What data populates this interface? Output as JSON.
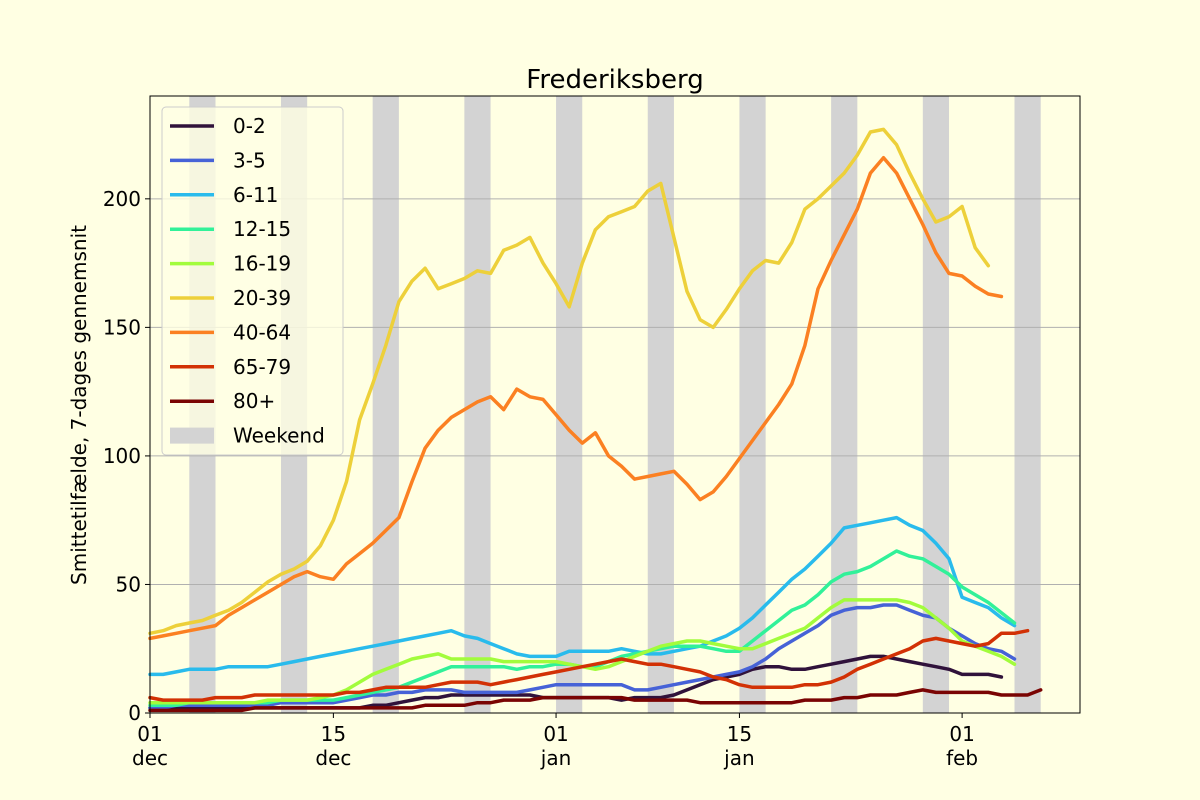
{
  "chart_data": {
    "type": "line",
    "title": "Frederiksberg",
    "xlabel": "",
    "ylabel": "Smittetilfælde, 7-dages gennemsnit",
    "xlim": [
      "2021-12-01",
      "2022-02-10"
    ],
    "ylim": [
      0,
      240
    ],
    "grid": "horizontal",
    "legend_position": "top-left",
    "y_ticks": [
      0,
      50,
      100,
      150,
      200
    ],
    "x_ticks": [
      {
        "date": "2021-12-01",
        "day": "01",
        "month": "dec"
      },
      {
        "date": "2021-12-15",
        "day": "15",
        "month": "dec"
      },
      {
        "date": "2022-01-01",
        "day": "01",
        "month": "jan"
      },
      {
        "date": "2022-01-15",
        "day": "15",
        "month": "jan"
      },
      {
        "date": "2022-02-01",
        "day": "01",
        "month": "feb"
      }
    ],
    "weekend_label": "Weekend",
    "weekend_color": "#d3d3d3",
    "weekends": [
      [
        "2021-12-04",
        "2021-12-06"
      ],
      [
        "2021-12-11",
        "2021-12-13"
      ],
      [
        "2021-12-18",
        "2021-12-20"
      ],
      [
        "2021-12-25",
        "2021-12-27"
      ],
      [
        "2022-01-01",
        "2022-01-03"
      ],
      [
        "2022-01-08",
        "2022-01-10"
      ],
      [
        "2022-01-15",
        "2022-01-17"
      ],
      [
        "2022-01-22",
        "2022-01-24"
      ],
      [
        "2022-01-29",
        "2022-01-31"
      ],
      [
        "2022-02-05",
        "2022-02-07"
      ]
    ],
    "series": [
      {
        "name": "0-2",
        "color": "#30123b",
        "start": "2021-12-01",
        "values": [
          2,
          2,
          2,
          2,
          2,
          2,
          2,
          2,
          2,
          2,
          2,
          2,
          2,
          2,
          2,
          2,
          2,
          3,
          3,
          4,
          5,
          6,
          6,
          7,
          7,
          7,
          7,
          7,
          7,
          7,
          6,
          6,
          6,
          6,
          6,
          6,
          5,
          6,
          6,
          6,
          7,
          9,
          11,
          13,
          14,
          15,
          17,
          18,
          18,
          17,
          17,
          18,
          19,
          20,
          21,
          22,
          22,
          21,
          20,
          19,
          18,
          17,
          15,
          15,
          15,
          14
        ]
      },
      {
        "name": "3-5",
        "color": "#4662d7",
        "start": "2021-12-01",
        "values": [
          2,
          2,
          3,
          3,
          3,
          3,
          3,
          3,
          3,
          3,
          4,
          4,
          4,
          4,
          4,
          5,
          6,
          7,
          7,
          8,
          8,
          9,
          9,
          9,
          8,
          8,
          8,
          8,
          8,
          9,
          10,
          11,
          11,
          11,
          11,
          11,
          11,
          9,
          9,
          10,
          11,
          12,
          13,
          14,
          15,
          16,
          18,
          21,
          25,
          28,
          31,
          34,
          38,
          40,
          41,
          41,
          42,
          42,
          40,
          38,
          37,
          33,
          30,
          27,
          25,
          24,
          21
        ]
      },
      {
        "name": "6-11",
        "color": "#29bbec",
        "start": "2021-12-01",
        "values": [
          15,
          15,
          16,
          17,
          17,
          17,
          18,
          18,
          18,
          18,
          19,
          20,
          21,
          22,
          23,
          24,
          25,
          26,
          27,
          28,
          29,
          30,
          31,
          32,
          30,
          29,
          27,
          25,
          23,
          22,
          22,
          22,
          24,
          24,
          24,
          24,
          25,
          24,
          23,
          23,
          24,
          25,
          26,
          28,
          30,
          33,
          37,
          42,
          47,
          52,
          56,
          61,
          66,
          72,
          73,
          74,
          75,
          76,
          73,
          71,
          66,
          60,
          45,
          43,
          41,
          37,
          34
        ]
      },
      {
        "name": "12-15",
        "color": "#31f199",
        "start": "2021-12-01",
        "values": [
          3,
          3,
          3,
          4,
          4,
          4,
          4,
          4,
          4,
          4,
          5,
          5,
          5,
          5,
          5,
          6,
          7,
          8,
          9,
          10,
          12,
          14,
          16,
          18,
          18,
          18,
          18,
          18,
          17,
          18,
          18,
          19,
          19,
          18,
          18,
          20,
          22,
          23,
          24,
          25,
          26,
          26,
          26,
          25,
          24,
          24,
          28,
          32,
          36,
          40,
          42,
          46,
          51,
          54,
          55,
          57,
          60,
          63,
          61,
          60,
          57,
          54,
          49,
          46,
          43,
          39,
          35
        ]
      },
      {
        "name": "16-19",
        "color": "#a2fc3c",
        "start": "2021-12-01",
        "values": [
          4,
          4,
          4,
          4,
          4,
          4,
          4,
          4,
          4,
          5,
          5,
          5,
          5,
          6,
          7,
          9,
          12,
          15,
          17,
          19,
          21,
          22,
          23,
          21,
          21,
          21,
          21,
          20,
          20,
          20,
          20,
          20,
          19,
          18,
          17,
          18,
          20,
          22,
          24,
          26,
          27,
          28,
          28,
          27,
          26,
          25,
          25,
          27,
          29,
          31,
          33,
          37,
          41,
          44,
          44,
          44,
          44,
          44,
          43,
          41,
          37,
          33,
          28,
          26,
          24,
          22,
          19
        ]
      },
      {
        "name": "20-39",
        "color": "#edd03a",
        "start": "2021-12-01",
        "values": [
          31,
          32,
          34,
          35,
          36,
          38,
          40,
          43,
          47,
          51,
          54,
          56,
          59,
          65,
          75,
          90,
          114,
          128,
          143,
          160,
          168,
          173,
          165,
          167,
          169,
          172,
          171,
          180,
          182,
          185,
          175,
          167,
          158,
          175,
          188,
          193,
          195,
          197,
          203,
          206,
          185,
          164,
          153,
          150,
          157,
          165,
          172,
          176,
          175,
          183,
          196,
          200,
          205,
          210,
          217,
          226,
          227,
          221,
          210,
          200,
          191,
          193,
          197,
          181,
          174
        ]
      },
      {
        "name": "40-64",
        "color": "#fb8022",
        "start": "2021-12-01",
        "values": [
          29,
          30,
          31,
          32,
          33,
          34,
          38,
          41,
          44,
          47,
          50,
          53,
          55,
          53,
          52,
          58,
          62,
          66,
          71,
          76,
          90,
          103,
          110,
          115,
          118,
          121,
          123,
          118,
          126,
          123,
          122,
          116,
          110,
          105,
          109,
          100,
          96,
          91,
          92,
          93,
          94,
          89,
          83,
          86,
          92,
          99,
          106,
          113,
          120,
          128,
          143,
          165,
          176,
          186,
          196,
          210,
          216,
          210,
          200,
          190,
          179,
          171,
          170,
          166,
          163,
          162
        ]
      },
      {
        "name": "65-79",
        "color": "#d23105",
        "start": "2021-12-01",
        "values": [
          6,
          5,
          5,
          5,
          5,
          6,
          6,
          6,
          7,
          7,
          7,
          7,
          7,
          7,
          7,
          8,
          8,
          9,
          10,
          10,
          10,
          10,
          11,
          12,
          12,
          12,
          11,
          12,
          13,
          14,
          15,
          16,
          17,
          18,
          19,
          20,
          21,
          20,
          19,
          19,
          18,
          17,
          16,
          14,
          13,
          11,
          10,
          10,
          10,
          10,
          11,
          11,
          12,
          14,
          17,
          19,
          21,
          23,
          25,
          28,
          29,
          28,
          27,
          26,
          27,
          31,
          31,
          32
        ]
      },
      {
        "name": "80+",
        "color": "#7a0403",
        "start": "2021-12-01",
        "values": [
          1,
          1,
          1,
          1,
          1,
          1,
          1,
          1,
          2,
          2,
          2,
          2,
          2,
          2,
          2,
          2,
          2,
          2,
          2,
          2,
          2,
          3,
          3,
          3,
          3,
          4,
          4,
          5,
          5,
          5,
          6,
          6,
          6,
          6,
          6,
          6,
          6,
          5,
          5,
          5,
          5,
          5,
          4,
          4,
          4,
          4,
          4,
          4,
          4,
          4,
          5,
          5,
          5,
          6,
          6,
          7,
          7,
          7,
          8,
          9,
          8,
          8,
          8,
          8,
          8,
          7,
          7,
          7,
          9
        ]
      }
    ]
  }
}
